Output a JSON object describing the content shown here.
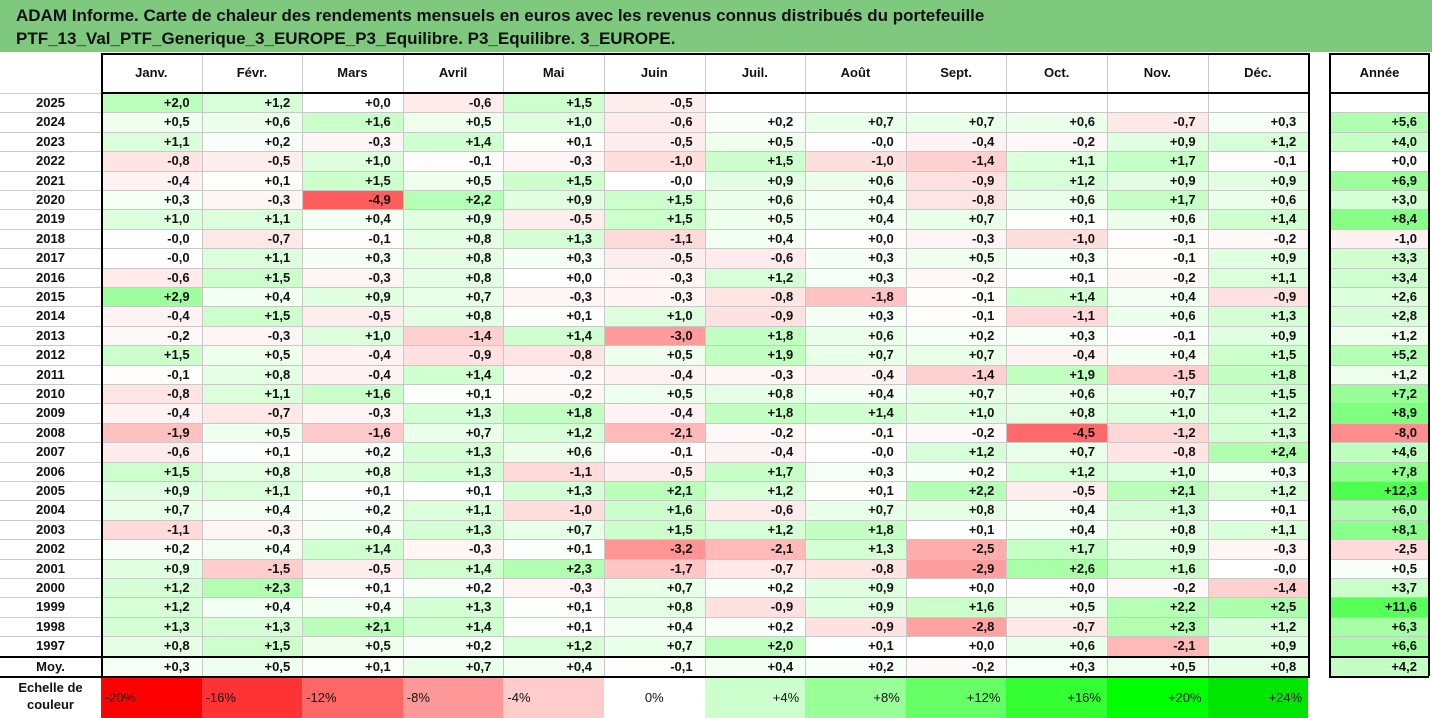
{
  "title_line1": "ADAM Informe. Carte de chaleur des rendements mensuels en euros avec les revenus connus distribués du portefeuille",
  "title_line2": "PTF_13_Val_PTF_Generique_3_EUROPE_P3_Equilibre. P3_Equilibre. 3_EUROPE.",
  "chart_data": {
    "type": "heatmap",
    "columns": [
      "Janv.",
      "Févr.",
      "Mars",
      "Avril",
      "Mai",
      "Juin",
      "Juil.",
      "Août",
      "Sept.",
      "Oct.",
      "Nov.",
      "Déc."
    ],
    "year_column_label": "Année",
    "rows": [
      {
        "label": "2025",
        "months": [
          "+2,0",
          "+1,2",
          "+0,0",
          "-0,6",
          "+1,5",
          "-0,5",
          "",
          "",
          "",
          "",
          "",
          ""
        ],
        "year": ""
      },
      {
        "label": "2024",
        "months": [
          "+0,5",
          "+0,6",
          "+1,6",
          "+0,5",
          "+1,0",
          "-0,6",
          "+0,2",
          "+0,7",
          "+0,7",
          "+0,6",
          "-0,7",
          "+0,3"
        ],
        "year": "+5,6"
      },
      {
        "label": "2023",
        "months": [
          "+1,1",
          "+0,2",
          "-0,3",
          "+1,4",
          "+0,1",
          "-0,5",
          "+0,5",
          "-0,0",
          "-0,4",
          "-0,2",
          "+0,9",
          "+1,2"
        ],
        "year": "+4,0"
      },
      {
        "label": "2022",
        "months": [
          "-0,8",
          "-0,5",
          "+1,0",
          "-0,1",
          "-0,3",
          "-1,0",
          "+1,5",
          "-1,0",
          "-1,4",
          "+1,1",
          "+1,7",
          "-0,1"
        ],
        "year": "+0,0"
      },
      {
        "label": "2021",
        "months": [
          "-0,4",
          "+0,1",
          "+1,5",
          "+0,5",
          "+1,5",
          "-0,0",
          "+0,9",
          "+0,6",
          "-0,9",
          "+1,2",
          "+0,9",
          "+0,9"
        ],
        "year": "+6,9"
      },
      {
        "label": "2020",
        "months": [
          "+0,3",
          "-0,3",
          "-4,9",
          "+2,2",
          "+0,9",
          "+1,5",
          "+0,6",
          "+0,4",
          "-0,8",
          "+0,6",
          "+1,7",
          "+0,6"
        ],
        "year": "+3,0"
      },
      {
        "label": "2019",
        "months": [
          "+1,0",
          "+1,1",
          "+0,4",
          "+0,9",
          "-0,5",
          "+1,5",
          "+0,5",
          "+0,4",
          "+0,7",
          "+0,1",
          "+0,6",
          "+1,4"
        ],
        "year": "+8,4"
      },
      {
        "label": "2018",
        "months": [
          "-0,0",
          "-0,7",
          "-0,1",
          "+0,8",
          "+1,3",
          "-1,1",
          "+0,4",
          "+0,0",
          "-0,3",
          "-1,0",
          "-0,1",
          "-0,2"
        ],
        "year": "-1,0"
      },
      {
        "label": "2017",
        "months": [
          "-0,0",
          "+1,1",
          "+0,3",
          "+0,8",
          "+0,3",
          "-0,5",
          "-0,6",
          "+0,3",
          "+0,5",
          "+0,3",
          "-0,1",
          "+0,9"
        ],
        "year": "+3,3"
      },
      {
        "label": "2016",
        "months": [
          "-0,6",
          "+1,5",
          "-0,3",
          "+0,8",
          "+0,0",
          "-0,3",
          "+1,2",
          "+0,3",
          "-0,2",
          "+0,1",
          "-0,2",
          "+1,1"
        ],
        "year": "+3,4"
      },
      {
        "label": "2015",
        "months": [
          "+2,9",
          "+0,4",
          "+0,9",
          "+0,7",
          "-0,3",
          "-0,3",
          "-0,8",
          "-1,8",
          "-0,1",
          "+1,4",
          "+0,4",
          "-0,9"
        ],
        "year": "+2,6"
      },
      {
        "label": "2014",
        "months": [
          "-0,4",
          "+1,5",
          "-0,5",
          "+0,8",
          "+0,1",
          "+1,0",
          "-0,9",
          "+0,3",
          "-0,1",
          "-1,1",
          "+0,6",
          "+1,3"
        ],
        "year": "+2,8"
      },
      {
        "label": "2013",
        "months": [
          "-0,2",
          "-0,3",
          "+1,0",
          "-1,4",
          "+1,4",
          "-3,0",
          "+1,8",
          "+0,6",
          "+0,2",
          "+0,3",
          "-0,1",
          "+0,9"
        ],
        "year": "+1,2"
      },
      {
        "label": "2012",
        "months": [
          "+1,5",
          "+0,5",
          "-0,4",
          "-0,9",
          "-0,8",
          "+0,5",
          "+1,9",
          "+0,7",
          "+0,7",
          "-0,4",
          "+0,4",
          "+1,5"
        ],
        "year": "+5,2"
      },
      {
        "label": "2011",
        "months": [
          "-0,1",
          "+0,8",
          "-0,4",
          "+1,4",
          "-0,2",
          "-0,4",
          "-0,3",
          "-0,4",
          "-1,4",
          "+1,9",
          "-1,5",
          "+1,8"
        ],
        "year": "+1,2"
      },
      {
        "label": "2010",
        "months": [
          "-0,8",
          "+1,1",
          "+1,6",
          "+0,1",
          "-0,2",
          "+0,5",
          "+0,8",
          "+0,4",
          "+0,7",
          "+0,6",
          "+0,7",
          "+1,5"
        ],
        "year": "+7,2"
      },
      {
        "label": "2009",
        "months": [
          "-0,4",
          "-0,7",
          "-0,3",
          "+1,3",
          "+1,8",
          "-0,4",
          "+1,8",
          "+1,4",
          "+1,0",
          "+0,8",
          "+1,0",
          "+1,2"
        ],
        "year": "+8,9"
      },
      {
        "label": "2008",
        "months": [
          "-1,9",
          "+0,5",
          "-1,6",
          "+0,7",
          "+1,2",
          "-2,1",
          "-0,2",
          "-0,1",
          "-0,2",
          "-4,5",
          "-1,2",
          "+1,3"
        ],
        "year": "-8,0"
      },
      {
        "label": "2007",
        "months": [
          "-0,6",
          "+0,1",
          "+0,2",
          "+1,3",
          "+0,6",
          "-0,1",
          "-0,4",
          "-0,0",
          "+1,2",
          "+0,7",
          "-0,8",
          "+2,4"
        ],
        "year": "+4,6"
      },
      {
        "label": "2006",
        "months": [
          "+1,5",
          "+0,8",
          "+0,8",
          "+1,3",
          "-1,1",
          "-0,5",
          "+1,7",
          "+0,3",
          "+0,2",
          "+1,2",
          "+1,0",
          "+0,3"
        ],
        "year": "+7,8"
      },
      {
        "label": "2005",
        "months": [
          "+0,9",
          "+1,1",
          "+0,1",
          "+0,1",
          "+1,3",
          "+2,1",
          "+1,2",
          "+0,1",
          "+2,2",
          "-0,5",
          "+2,1",
          "+1,2"
        ],
        "year": "+12,3"
      },
      {
        "label": "2004",
        "months": [
          "+0,7",
          "+0,4",
          "+0,2",
          "+1,1",
          "-1,0",
          "+1,6",
          "-0,6",
          "+0,7",
          "+0,8",
          "+0,4",
          "+1,3",
          "+0,1"
        ],
        "year": "+6,0"
      },
      {
        "label": "2003",
        "months": [
          "-1,1",
          "-0,3",
          "+0,4",
          "+1,3",
          "+0,7",
          "+1,5",
          "+1,2",
          "+1,8",
          "+0,1",
          "+0,4",
          "+0,8",
          "+1,1"
        ],
        "year": "+8,1"
      },
      {
        "label": "2002",
        "months": [
          "+0,2",
          "+0,4",
          "+1,4",
          "-0,3",
          "+0,1",
          "-3,2",
          "-2,1",
          "+1,3",
          "-2,5",
          "+1,7",
          "+0,9",
          "-0,3"
        ],
        "year": "-2,5"
      },
      {
        "label": "2001",
        "months": [
          "+0,9",
          "-1,5",
          "-0,5",
          "+1,4",
          "+2,3",
          "-1,7",
          "-0,7",
          "-0,8",
          "-2,9",
          "+2,6",
          "+1,6",
          "-0,0"
        ],
        "year": "+0,5"
      },
      {
        "label": "2000",
        "months": [
          "+1,2",
          "+2,3",
          "+0,1",
          "+0,2",
          "-0,3",
          "+0,7",
          "+0,2",
          "+0,9",
          "+0,0",
          "+0,0",
          "-0,2",
          "-1,4"
        ],
        "year": "+3,7"
      },
      {
        "label": "1999",
        "months": [
          "+1,2",
          "+0,4",
          "+0,4",
          "+1,3",
          "+0,1",
          "+0,8",
          "-0,9",
          "+0,9",
          "+1,6",
          "+0,5",
          "+2,2",
          "+2,5"
        ],
        "year": "+11,6"
      },
      {
        "label": "1998",
        "months": [
          "+1,3",
          "+1,3",
          "+2,1",
          "+1,4",
          "+0,1",
          "+0,4",
          "+0,2",
          "-0,9",
          "-2,8",
          "-0,7",
          "+2,3",
          "+1,2"
        ],
        "year": "+6,3"
      },
      {
        "label": "1997",
        "months": [
          "+0,8",
          "+1,5",
          "+0,5",
          "+0,2",
          "+1,2",
          "+0,7",
          "+2,0",
          "+0,1",
          "+0,0",
          "+0,6",
          "-2,1",
          "+0,9"
        ],
        "year": "+6,6"
      }
    ],
    "average": {
      "label": "Moy.",
      "months": [
        "+0,3",
        "+0,5",
        "+0,1",
        "+0,7",
        "+0,4",
        "-0,1",
        "+0,4",
        "+0,2",
        "-0,2",
        "+0,3",
        "+0,5",
        "+0,8"
      ],
      "year": "+4,2"
    },
    "scale": {
      "label_line1": "Echelle de",
      "label_line2": "couleur",
      "steps": [
        {
          "text": "-20%",
          "color": "#ff0000"
        },
        {
          "text": "-16%",
          "color": "#ff3333"
        },
        {
          "text": "-12%",
          "color": "#ff6666"
        },
        {
          "text": "-8%",
          "color": "#ff9999"
        },
        {
          "text": "-4%",
          "color": "#ffcccc"
        },
        {
          "text": "0%",
          "color": "#ffffff"
        },
        {
          "text": "+4%",
          "color": "#ccffcc"
        },
        {
          "text": "+8%",
          "color": "#99ff99"
        },
        {
          "text": "+12%",
          "color": "#66ff66"
        },
        {
          "text": "+16%",
          "color": "#33ff33"
        },
        {
          "text": "+20%",
          "color": "#00ff00"
        },
        {
          "text": "+24%",
          "color": "#00e600"
        }
      ]
    }
  },
  "colors": {
    "title_bg": "#7fc97f",
    "negative": "#ff0000",
    "positive": "#00ff00",
    "neutral": "#ffffff"
  }
}
